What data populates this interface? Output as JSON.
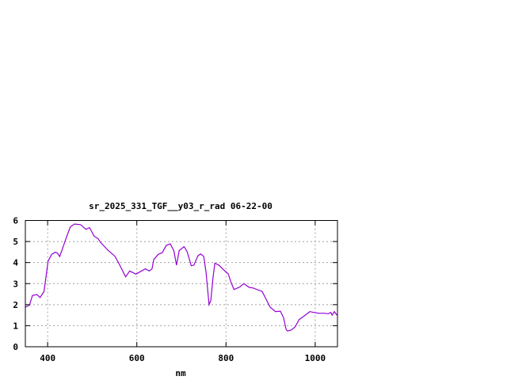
{
  "chart_data": {
    "type": "line",
    "title": "sr_2025_331_TGF__y03_r_rad 06-22-00",
    "xlabel": "nm",
    "ylabel": "",
    "xlim": [
      350,
      1050
    ],
    "ylim": [
      0,
      6
    ],
    "xticks": [
      400,
      600,
      800,
      1000
    ],
    "yticks": [
      0,
      1,
      2,
      3,
      4,
      5,
      6
    ],
    "grid": true,
    "line_color": "#9400d3",
    "series": [
      {
        "x": [
          350,
          359,
          366,
          376,
          383,
          392,
          401,
          409,
          417,
          422,
          427,
          433,
          442,
          451,
          460,
          474,
          486,
          494,
          504,
          513,
          519,
          536,
          551,
          560,
          575,
          584,
          598,
          619,
          628,
          634,
          638,
          648,
          657,
          666,
          675,
          683,
          689,
          695,
          706,
          713,
          722,
          728,
          737,
          743,
          750,
          755,
          762,
          766,
          771,
          775,
          784,
          796,
          805,
          811,
          818,
          831,
          840,
          852,
          861,
          873,
          881,
          890,
          899,
          911,
          922,
          929,
          935,
          938,
          946,
          955,
          964,
          976,
          988,
          997,
          1008,
          1020,
          1029,
          1035,
          1038,
          1043,
          1049
        ],
        "y": [
          1.88,
          1.97,
          2.44,
          2.48,
          2.34,
          2.63,
          4.07,
          4.39,
          4.49,
          4.45,
          4.29,
          4.64,
          5.2,
          5.7,
          5.83,
          5.8,
          5.58,
          5.66,
          5.26,
          5.14,
          4.95,
          4.57,
          4.3,
          3.95,
          3.32,
          3.6,
          3.45,
          3.7,
          3.6,
          3.7,
          4.14,
          4.39,
          4.47,
          4.82,
          4.89,
          4.57,
          3.88,
          4.57,
          4.76,
          4.51,
          3.85,
          3.88,
          4.32,
          4.41,
          4.3,
          3.57,
          2.0,
          2.19,
          3.32,
          3.97,
          3.88,
          3.63,
          3.47,
          3.07,
          2.72,
          2.84,
          3.0,
          2.82,
          2.79,
          2.69,
          2.63,
          2.26,
          1.88,
          1.67,
          1.69,
          1.38,
          0.81,
          0.75,
          0.79,
          0.94,
          1.29,
          1.47,
          1.67,
          1.63,
          1.59,
          1.59,
          1.57,
          1.63,
          1.5,
          1.67,
          1.5
        ]
      }
    ]
  }
}
